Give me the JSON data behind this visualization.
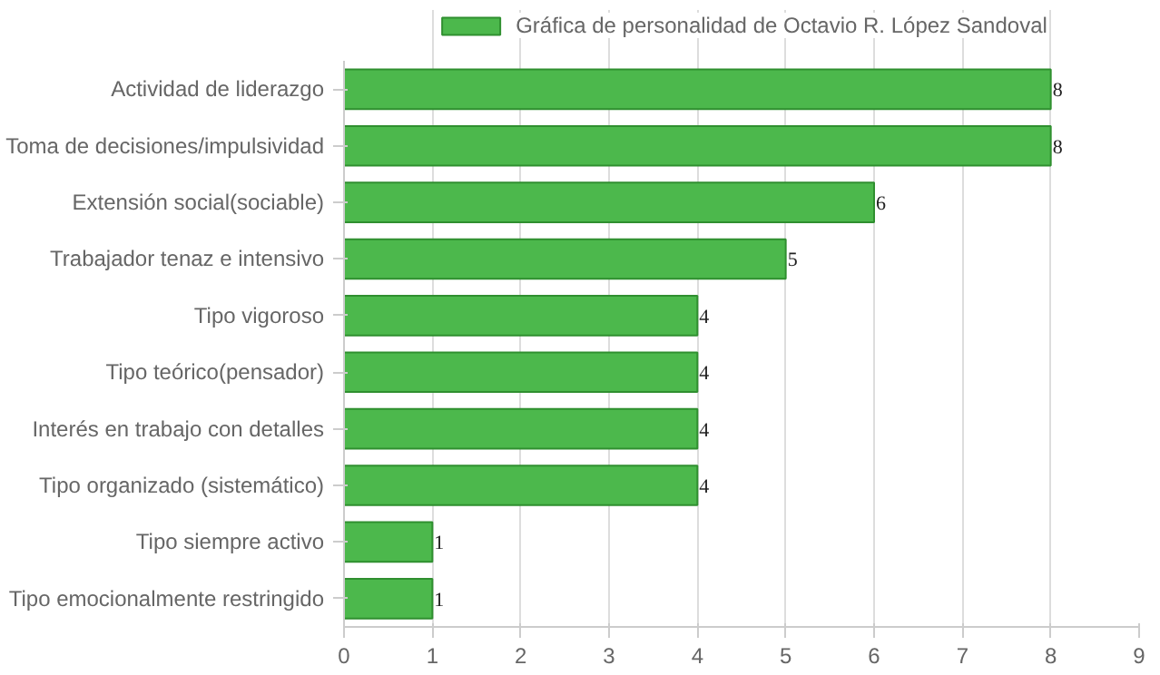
{
  "chart_data": {
    "type": "bar",
    "orientation": "horizontal",
    "categories": [
      "Actividad de liderazgo",
      "Toma de decisiones/impulsividad",
      "Extensión social(sociable)",
      "Trabajador tenaz e intensivo",
      "Tipo vigoroso",
      "Tipo teórico(pensador)",
      "Interés en trabajo con detalles",
      "Tipo organizado (sistemático)",
      "Tipo siempre activo",
      "Tipo emocionalmente restringido"
    ],
    "series": [
      {
        "name": "Gráfica de personalidad de Octavio R. López Sandoval",
        "color": "#4cb84c",
        "values": [
          8,
          8,
          6,
          5,
          4,
          4,
          4,
          4,
          1,
          1
        ]
      }
    ],
    "xlim": [
      0,
      9
    ],
    "xticks": [
      0,
      1,
      2,
      3,
      4,
      5,
      6,
      7,
      8,
      9
    ],
    "grid": "x",
    "legend": "top",
    "data_labels": true
  }
}
